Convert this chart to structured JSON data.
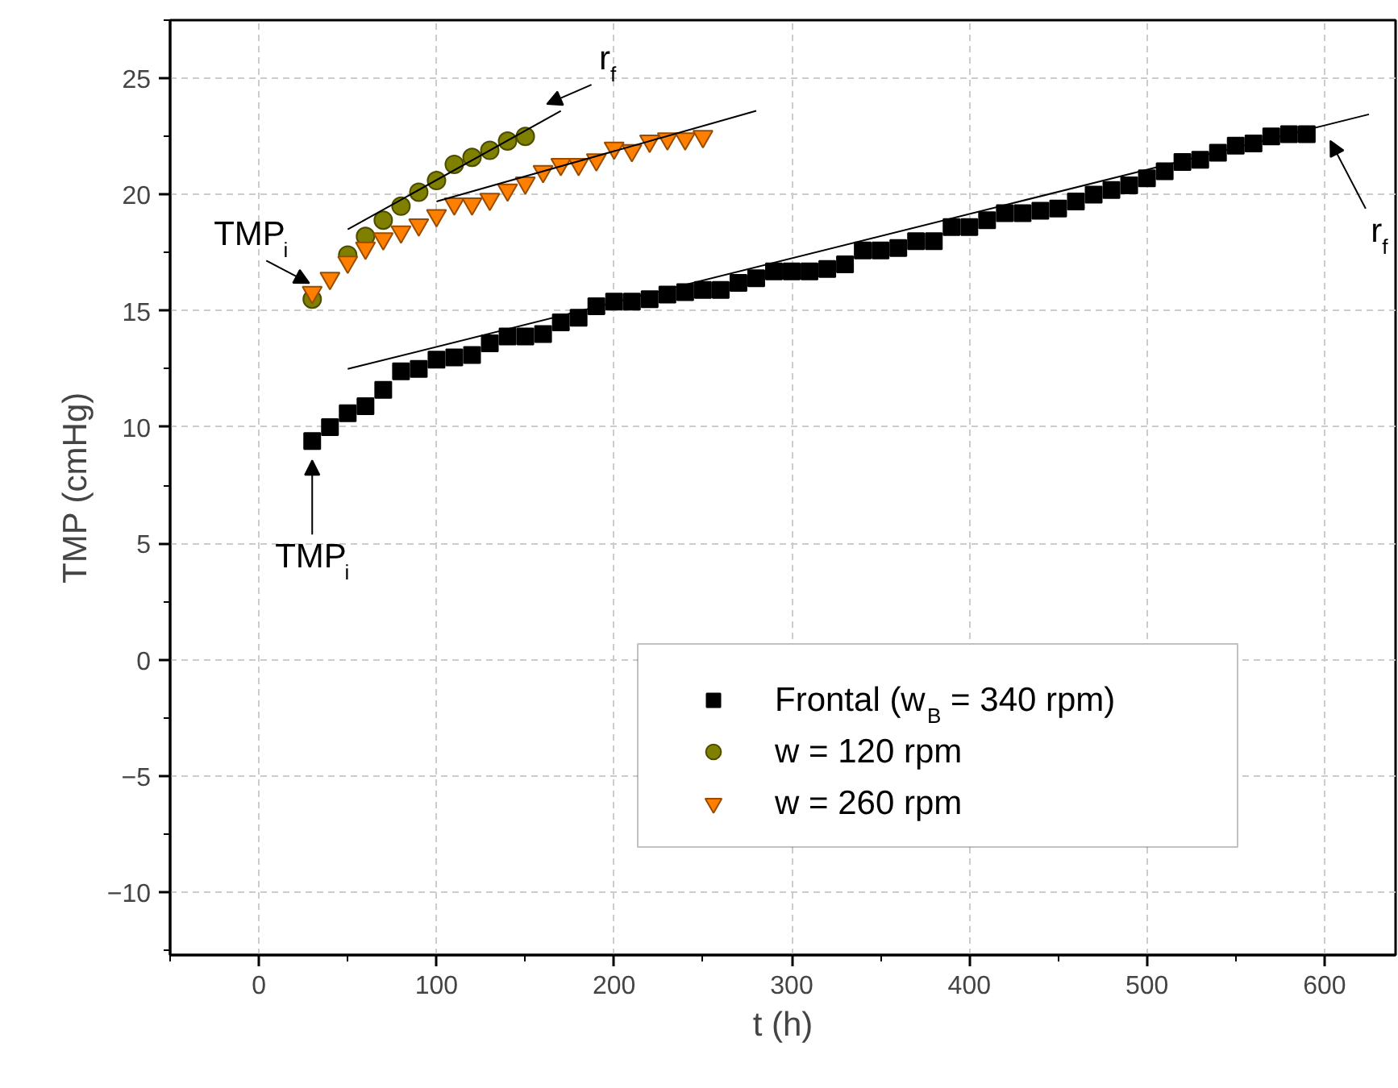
{
  "chart_data": {
    "type": "scatter",
    "xlabel": "t (h)",
    "ylabel": "TMP (cmHg)",
    "xlim": [
      -50,
      640
    ],
    "ylim": [
      -12.7,
      27.5
    ],
    "xticks": [
      0,
      100,
      200,
      300,
      400,
      500,
      600
    ],
    "yticks": [
      -10,
      -5,
      0,
      5,
      10,
      15,
      20,
      25
    ],
    "grid": true,
    "legend": "bottom right",
    "series": [
      {
        "name": "Frontal (w$_{B}$ = 340 rpm)",
        "color": "#000000",
        "marker": "square",
        "x": [
          30,
          40,
          50,
          60,
          70,
          80,
          90,
          100,
          110,
          120,
          130,
          140,
          150,
          160,
          170,
          180,
          190,
          200,
          210,
          220,
          230,
          240,
          250,
          260,
          270,
          280,
          290,
          300,
          310,
          320,
          330,
          340,
          350,
          360,
          370,
          380,
          390,
          400,
          410,
          420,
          430,
          440,
          450,
          460,
          470,
          480,
          490,
          500,
          510,
          520,
          530,
          540,
          550,
          560,
          570,
          580,
          590
        ],
        "values": [
          9.4,
          10.0,
          10.6,
          10.9,
          11.6,
          12.4,
          12.5,
          12.9,
          13.0,
          13.1,
          13.6,
          13.9,
          13.9,
          14.0,
          14.5,
          14.7,
          15.2,
          15.4,
          15.4,
          15.5,
          15.7,
          15.8,
          15.9,
          15.9,
          16.2,
          16.4,
          16.7,
          16.7,
          16.7,
          16.8,
          17.0,
          17.6,
          17.6,
          17.7,
          18.0,
          18.0,
          18.6,
          18.6,
          18.9,
          19.2,
          19.2,
          19.3,
          19.4,
          19.7,
          20.0,
          20.2,
          20.4,
          20.7,
          21.0,
          21.4,
          21.5,
          21.8,
          22.1,
          22.2,
          22.5,
          22.6,
          22.6
        ]
      },
      {
        "name": "w = 120 rpm",
        "color": "#808000",
        "marker": "circle",
        "x": [
          30,
          40,
          50,
          60,
          70,
          80,
          90,
          100,
          110,
          120,
          130,
          140,
          150
        ],
        "values": [
          15.5,
          null,
          17.4,
          18.2,
          18.9,
          19.5,
          20.1,
          20.6,
          21.3,
          21.6,
          21.9,
          22.3,
          22.5
        ]
      },
      {
        "name": "w = 260 rpm",
        "color": "#ff8000",
        "marker": "triangle",
        "x": [
          30,
          40,
          50,
          60,
          70,
          80,
          90,
          100,
          110,
          120,
          130,
          140,
          150,
          160,
          170,
          180,
          190,
          200,
          210,
          220,
          230,
          240,
          250
        ],
        "values": [
          15.8,
          16.4,
          17.1,
          17.7,
          18.1,
          18.4,
          18.7,
          19.1,
          19.6,
          19.6,
          19.8,
          20.2,
          20.5,
          21.0,
          21.3,
          21.3,
          21.5,
          22.0,
          21.9,
          22.3,
          22.4,
          22.4,
          22.5
        ]
      },
      {
        "type": "line",
        "color": "#000000",
        "x": [
          50,
          625
        ],
        "values": [
          12.5,
          23.45
        ]
      },
      {
        "type": "line",
        "color": "#000000",
        "x": [
          50,
          170
        ],
        "values": [
          18.5,
          23.6
        ]
      },
      {
        "type": "line",
        "color": "#000000",
        "x": [
          100,
          280
        ],
        "values": [
          19.7,
          23.6
        ]
      }
    ],
    "annotations": [
      {
        "text": "TMP$_{i}$",
        "x": 30,
        "y": 15.5
      },
      {
        "text": "TMP$_{i}$",
        "x": 30,
        "y": 9.4
      },
      {
        "text": "r$_{f}$",
        "x": 160,
        "y": 23.2
      },
      {
        "text": "r$_{f}$",
        "x": 600,
        "y": 23.0
      }
    ]
  }
}
